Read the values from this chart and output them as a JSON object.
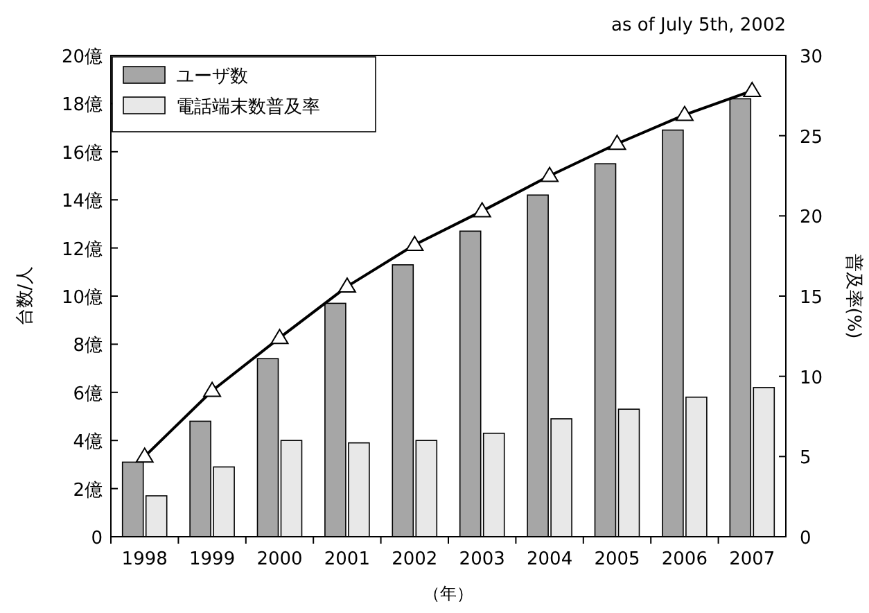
{
  "chart_data": {
    "type": "bar",
    "categories": [
      "1998",
      "1999",
      "2000",
      "2001",
      "2002",
      "2003",
      "2004",
      "2005",
      "2006",
      "2007"
    ],
    "xlabel": "（年）",
    "ylabel": "台数/人",
    "y2label": "普及率(%)",
    "annotations": [
      "as of July 5th, 2002"
    ],
    "ylim": [
      0,
      20
    ],
    "yticks": [
      0,
      {
        "value": 2,
        "label": "2億"
      },
      {
        "value": 4,
        "label": "4億"
      },
      {
        "value": 6,
        "label": "6億"
      },
      {
        "value": 8,
        "label": "8億"
      },
      {
        "value": 10,
        "label": "10億"
      },
      {
        "value": 12,
        "label": "12億"
      },
      {
        "value": 14,
        "label": "14億"
      },
      {
        "value": 16,
        "label": "16億"
      },
      {
        "value": 18,
        "label": "18億"
      },
      {
        "value": 20,
        "label": "20億"
      }
    ],
    "y2lim": [
      0,
      30
    ],
    "y2ticks": [
      0,
      5,
      10,
      15,
      20,
      25,
      30
    ],
    "legend": "top left",
    "series": [
      {
        "name": "ユーザ数",
        "color": "#a6a6a6",
        "values": [
          3.1,
          4.8,
          7.4,
          9.7,
          11.3,
          12.7,
          14.2,
          15.5,
          16.9,
          18.2
        ]
      },
      {
        "name": "電話端末数普及率",
        "color": "#e8e8e8",
        "values": [
          1.7,
          2.9,
          4.0,
          3.9,
          4.0,
          4.3,
          4.9,
          5.3,
          5.8,
          6.2
        ]
      },
      {
        "type": "line",
        "axis": "y2",
        "color": "#000000",
        "marker": "triangle",
        "values": [
          5.0,
          9.1,
          12.4,
          15.6,
          18.2,
          20.3,
          22.5,
          24.5,
          26.3,
          27.8
        ]
      }
    ]
  }
}
